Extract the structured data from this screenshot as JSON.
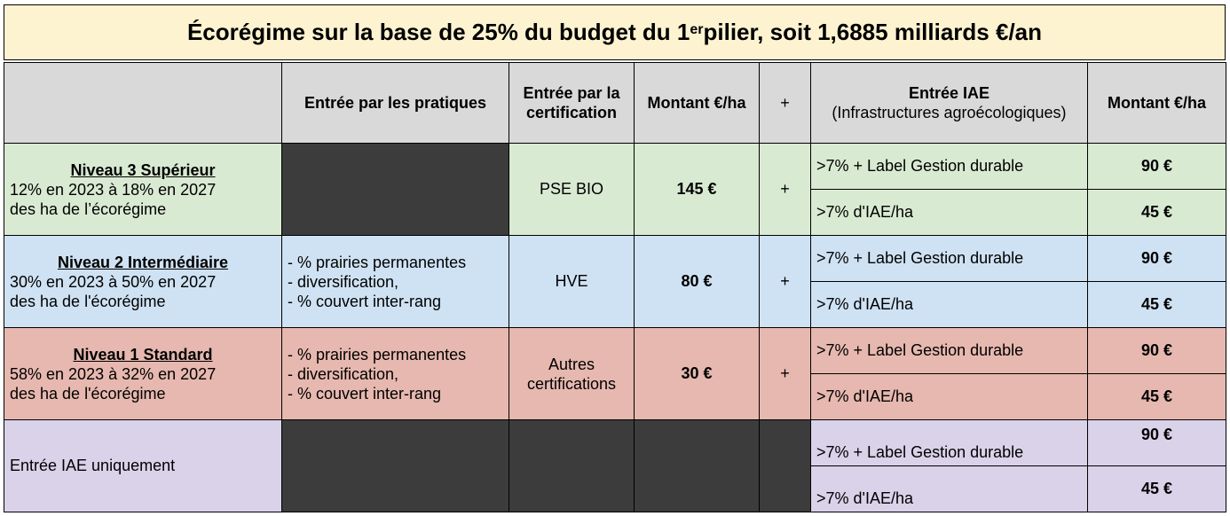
{
  "title": {
    "prefix": "Écorégime sur la base de 25% du budget du 1",
    "superscript": "er",
    "suffix": " pilier, soit 1,6885 milliards €/an"
  },
  "headers": {
    "level": "",
    "pratiques": "Entrée par les pratiques",
    "certification": "Entrée par la certification",
    "montant": "Montant €/ha",
    "plus": "+",
    "iae": "Entrée IAE",
    "iae_sub": "(Infrastructures agroécologiques)",
    "montant2": "Montant €/ha"
  },
  "rows": [
    {
      "level_name": "Niveau 3 Supérieur",
      "level_desc_1": "12% en 2023 à 18% en 2027",
      "level_desc_2": "des ha de l’écorégime",
      "pratiques": [],
      "certification": "PSE BIO",
      "montant": "145 €",
      "plus": "+",
      "iae_1": ">7% + Label Gestion durable",
      "iae_1_amount": "90 €",
      "iae_2": ">7% d'IAE/ha",
      "iae_2_amount": "45 €"
    },
    {
      "level_name": "Niveau 2 Intermédiaire",
      "level_desc_1": "30% en 2023 à 50% en 2027",
      "level_desc_2": "des ha de l'écorégime",
      "pratiques": [
        "- % prairies permanentes",
        "- diversification,",
        "- % couvert inter-rang"
      ],
      "certification": "HVE",
      "montant": "80 €",
      "plus": "+",
      "iae_1": ">7% + Label Gestion durable",
      "iae_1_amount": "90 €",
      "iae_2": ">7% d'IAE/ha",
      "iae_2_amount": "45 €"
    },
    {
      "level_name": "Niveau 1 Standard",
      "level_desc_1": "58% en 2023 à 32% en 2027",
      "level_desc_2": "des ha de l'écorégime",
      "pratiques": [
        "- % prairies permanentes",
        "- diversification,",
        "- % couvert inter-rang"
      ],
      "certification_1": "Autres",
      "certification_2": "certifications",
      "montant": "30 €",
      "plus": "+",
      "iae_1": ">7% + Label Gestion durable",
      "iae_1_amount": "90 €",
      "iae_2": ">7% d'IAE/ha",
      "iae_2_amount": "45 €"
    },
    {
      "level_label": "Entrée IAE uniquement",
      "iae_1": ">7% + Label Gestion durable",
      "iae_1_amount": "90 €",
      "iae_2": ">7% d'IAE/ha",
      "iae_2_amount": "45 €"
    }
  ],
  "colors": {
    "title_bg": "#fdf3d0",
    "header_bg": "#d9d9d9",
    "level3_bg": "#d9ead3",
    "level2_bg": "#cfe2f3",
    "level1_bg": "#e6b8af",
    "iae_only_bg": "#d9d2e9",
    "empty_cell_bg": "#3c3c3c"
  }
}
